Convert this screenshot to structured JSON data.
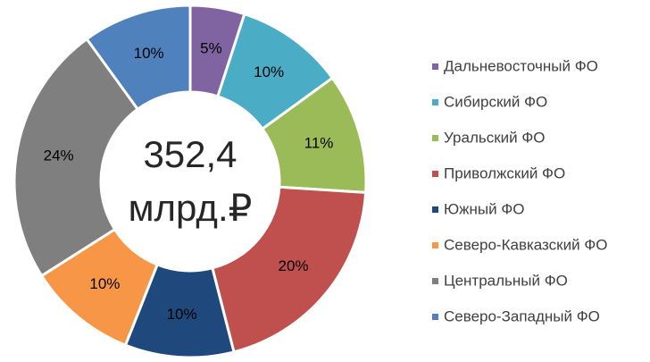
{
  "chart_data": {
    "type": "donut",
    "center_text": [
      "352,4",
      "млрд.₽"
    ],
    "categories": [
      "Дальневосточный ФО",
      "Сибирский ФО",
      "Уральский ФО",
      "Приволжский ФО",
      "Южный ФО",
      "Северо-Кавказский ФО",
      "Центральный ФО",
      "Северо-Западный ФО"
    ],
    "values": [
      5,
      10,
      11,
      20,
      10,
      10,
      24,
      10
    ],
    "value_labels": [
      "5%",
      "10%",
      "11%",
      "20%",
      "10%",
      "10%",
      "24%",
      "10%"
    ],
    "colors": [
      "#8064a2",
      "#4bacc6",
      "#9bbb59",
      "#c0504d",
      "#1f497d",
      "#f79646",
      "#7f7f7f",
      "#4f81bd"
    ],
    "legend": "right"
  }
}
